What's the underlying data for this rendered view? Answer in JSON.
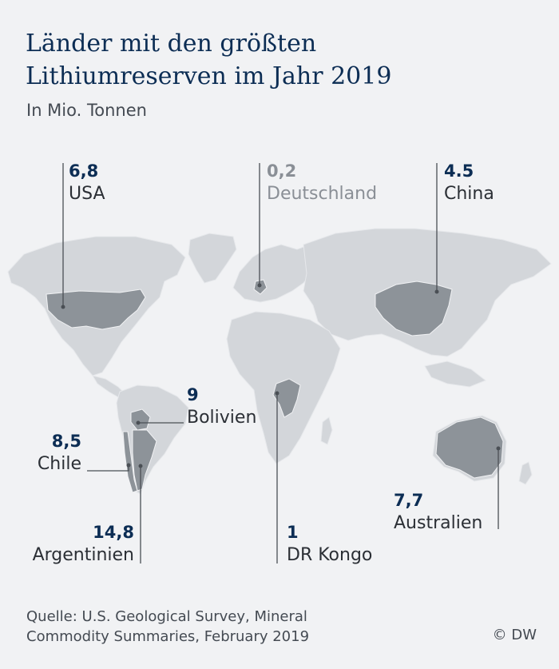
{
  "header": {
    "title_line1": "Länder mit den größten",
    "title_line2": "Lithiumreserven im Jahr 2019",
    "subtitle": "In Mio. Tonnen"
  },
  "countries": [
    {
      "name": "USA",
      "value": "6,8"
    },
    {
      "name": "Deutschland",
      "value": "0,2"
    },
    {
      "name": "China",
      "value": "4.5"
    },
    {
      "name": "Bolivien",
      "value": "9"
    },
    {
      "name": "Chile",
      "value": "8,5"
    },
    {
      "name": "Argentinien",
      "value": "14,8"
    },
    {
      "name": "DR Kongo",
      "value": "1"
    },
    {
      "name": "Australien",
      "value": "7,7"
    }
  ],
  "footer": {
    "source_line1": "Quelle: U.S. Geological Survey, Mineral",
    "source_line2": "Commodity Summaries, February 2019",
    "credit": "© DW"
  },
  "colors": {
    "background": "#f1f2f4",
    "land": "#d3d6da",
    "highlight": "#8d9399",
    "title": "#0c2d54",
    "leader_line": "#4a4f55"
  }
}
